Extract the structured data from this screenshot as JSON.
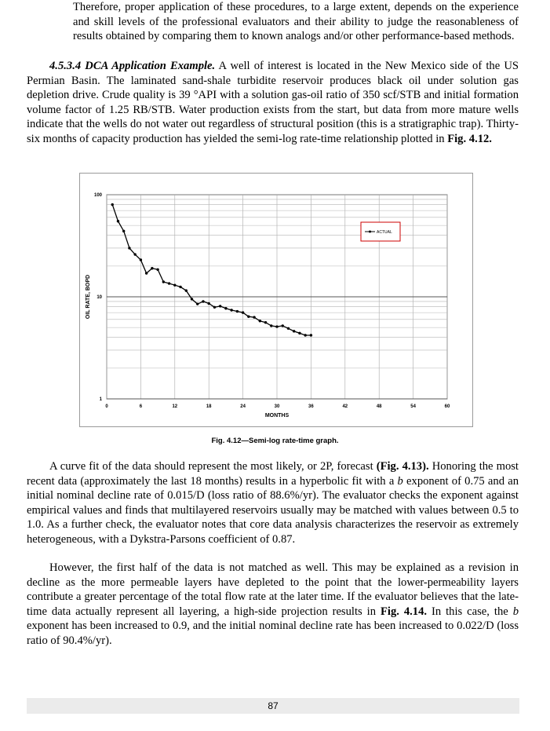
{
  "page": {
    "p1": "Therefore, proper application of these procedures, to a large extent, depends on the experience and skill levels of the professional evaluators and their ability to judge the reasonableness of results obtained by comparing them to known analogs and/or other performance-based methods.",
    "p2_head": "4.5.3.4 DCA Application Example.",
    "p2_body": " A well of interest is located in the New Mexico side of the US Permian Basin. The laminated sand-shale turbidite reservoir produces black oil under solution gas depletion drive. Crude quality is 39 °API with a solution gas-oil ratio of 350 scf/STB and initial formation volume factor of 1.25 RB/STB. Water production exists from the start, but data from more mature wells indicate that the wells do not water out regardless of structural position (this is a stratigraphic trap). Thirty-six months of capacity production has yielded the semi-log rate-time relationship plotted in ",
    "p2_ref": "Fig. 4.12.",
    "p3_a": "A curve fit of the data should represent the most likely, or 2P, forecast ",
    "p3_ref": "(Fig. 4.13).",
    "p3_b": " Honoring the most recent data (approximately the last 18 months) results in a hyperbolic fit with a ",
    "p3_bvar": "b",
    "p3_c": " exponent of 0.75 and an initial nominal decline rate of 0.015/D (loss ratio of 88.6%/yr). The evaluator checks the exponent against empirical values and finds that multilayered reservoirs usually may be matched with values between 0.5 to 1.0. As a further check, the evaluator notes that core data analysis characterizes the reservoir as extremely heterogeneous, with a Dykstra-Parsons coefficient of 0.87.",
    "p4_a": "However, the first half of the data is not matched as well. This may be explained as a revision in decline as the more permeable layers have depleted to the point that the lower-permeability layers contribute a greater percentage of the total flow rate at the later time. If the evaluator believes that the late-time data actually represent all layering, a high-side projection results in ",
    "p4_ref": "Fig. 4.14.",
    "p4_b": " In this case, the ",
    "p4_bvar": "b",
    "p4_c": " exponent has been increased to 0.9, and the initial nominal decline rate has been increased to 0.022/D (loss ratio of 90.4%/yr).",
    "caption": "Fig. 4.12—Semi-log rate-time graph.",
    "page_number": "87"
  },
  "chart_data": {
    "type": "line",
    "xlabel": "MONTHS",
    "ylabel": "OIL RATE, BOPD",
    "x_ticks": [
      "0",
      "6",
      "12",
      "18",
      "24",
      "30",
      "36",
      "42",
      "48",
      "54",
      "60"
    ],
    "y_ticks": [
      "1",
      "10",
      "100"
    ],
    "xlim": [
      0,
      60
    ],
    "ylim": [
      1,
      100
    ],
    "y_scale": "log",
    "grid": true,
    "legend_position": "top-right",
    "series": [
      {
        "name": "ACTUAL",
        "color": "#000000",
        "x": [
          1,
          2,
          3,
          4,
          5,
          6,
          7,
          8,
          9,
          10,
          11,
          12,
          13,
          14,
          15,
          16,
          17,
          18,
          19,
          20,
          21,
          22,
          23,
          24,
          25,
          26,
          27,
          28,
          29,
          30,
          31,
          32,
          33,
          34,
          35,
          36
        ],
        "values": [
          80,
          55,
          44,
          30,
          26,
          23,
          17,
          19,
          18.5,
          14,
          13.5,
          13,
          12.5,
          11.5,
          9.5,
          8.5,
          9,
          8.6,
          7.9,
          8.1,
          7.7,
          7.4,
          7.2,
          7.0,
          6.4,
          6.3,
          5.8,
          5.6,
          5.2,
          5.1,
          5.2,
          4.9,
          4.6,
          4.4,
          4.2,
          4.2
        ]
      }
    ]
  }
}
